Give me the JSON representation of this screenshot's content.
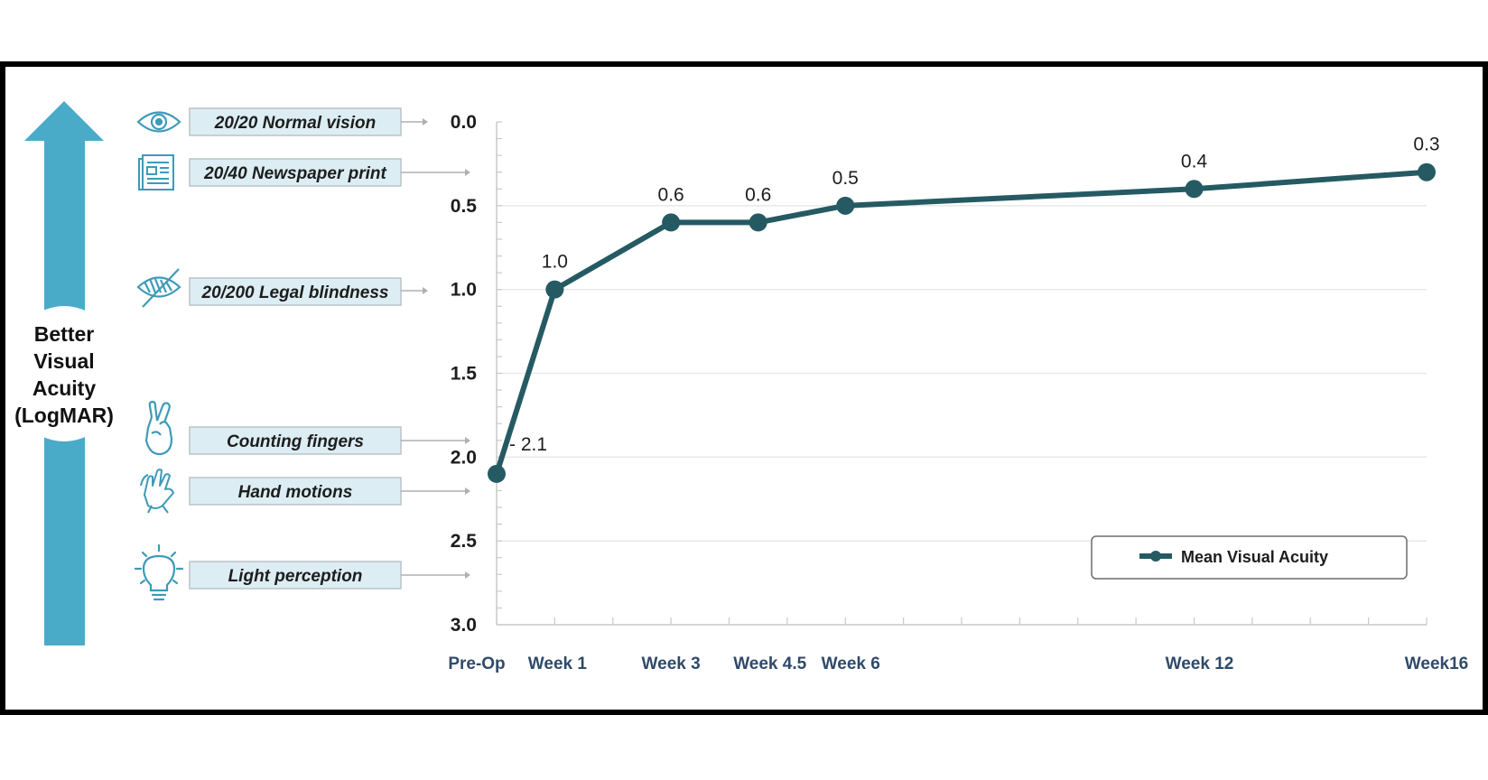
{
  "colors": {
    "series": "#255a63",
    "arrow": "#4aabc8",
    "icon": "#3d9ab8",
    "label_box_fill": "#dcedf3",
    "label_box_stroke": "#b9c3c8",
    "grid": "#e6e6e6",
    "axis": "#c9c9c9",
    "tick_label_x": "#2f4a6a"
  },
  "acuity_arrow_label": [
    "Better",
    "Visual",
    "Acuity",
    "(LogMAR)"
  ],
  "reference_levels": [
    {
      "label": "20/20 Normal vision",
      "icon": "eye-icon"
    },
    {
      "label": "20/40 Newspaper print",
      "icon": "newspaper-icon"
    },
    {
      "label": "20/200 Legal blindness",
      "icon": "eye-slash-icon"
    },
    {
      "label": "Counting fingers",
      "icon": "two-fingers-hand-icon"
    },
    {
      "label": "Hand motions",
      "icon": "waving-hands-icon"
    },
    {
      "label": "Light perception",
      "icon": "lightbulb-icon"
    }
  ],
  "chart_data": {
    "type": "line",
    "categories": [
      "Pre-Op",
      "Week 1",
      "Week 3",
      "Week 4.5",
      "Week 6",
      "Week 12",
      "Week16"
    ],
    "x": [
      0,
      1,
      3,
      4.5,
      6,
      12,
      16
    ],
    "y_ticks": [
      "0.0",
      "0.5",
      "1.0",
      "1.5",
      "2.0",
      "2.5",
      "3.0"
    ],
    "ylim": [
      0,
      3.0
    ],
    "y_inverted": true,
    "grid": true,
    "legend_position": "bottom-right",
    "series": [
      {
        "name": "Mean Visual Acuity",
        "values": [
          2.1,
          1.0,
          0.6,
          0.6,
          0.5,
          0.4,
          0.3
        ],
        "labels": [
          "2.1",
          "1.0",
          "0.6",
          "0.6",
          "0.5",
          "0.4",
          "0.3"
        ]
      }
    ]
  }
}
